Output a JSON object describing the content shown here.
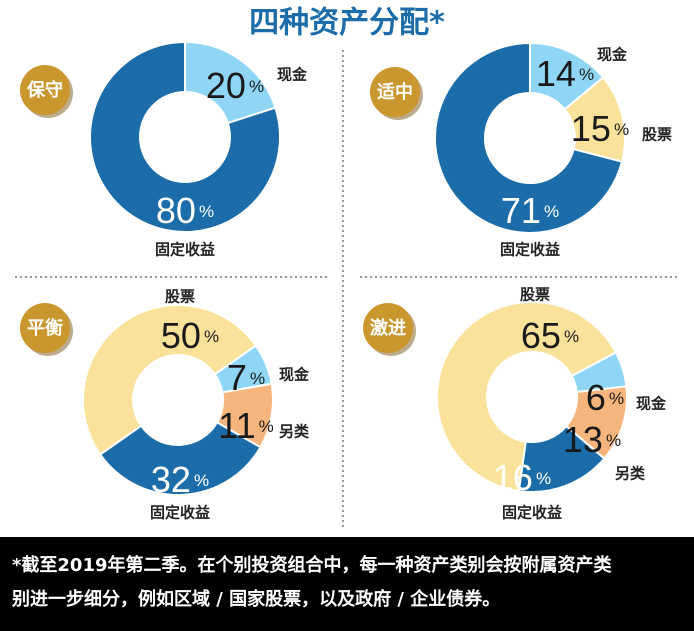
{
  "title": "四种资产分配*",
  "footnote": [
    "*截至2019年第二季。在个别投资组合中，每一种资产类别会按附属资产类",
    "别进一步细分，例如区域 / 国家股票，以及政府 / 企业债券。"
  ],
  "chart_data": [
    {
      "type": "pie",
      "title": "保守",
      "categories": [
        "现金",
        "固定收益"
      ],
      "values": [
        20,
        80
      ],
      "value_labels": [
        "20%",
        "80%"
      ],
      "colors": [
        "#8fd5f5",
        "#1b6ca8"
      ]
    },
    {
      "type": "pie",
      "title": "适中",
      "categories": [
        "现金",
        "股票",
        "固定收益"
      ],
      "values": [
        14,
        15,
        71
      ],
      "value_labels": [
        "14%",
        "15%",
        "71%"
      ],
      "colors": [
        "#8fd5f5",
        "#fbe29a",
        "#1b6ca8"
      ]
    },
    {
      "type": "pie",
      "title": "平衡",
      "categories": [
        "现金",
        "另类",
        "固定收益",
        "股票"
      ],
      "values": [
        7,
        11,
        32,
        50
      ],
      "value_labels": [
        "7%",
        "11%",
        "32%",
        "50%"
      ],
      "colors": [
        "#8fd5f5",
        "#f6b57c",
        "#1b6ca8",
        "#fbe29a"
      ]
    },
    {
      "type": "pie",
      "title": "激进",
      "categories": [
        "现金",
        "另类",
        "固定收益",
        "股票"
      ],
      "values": [
        6,
        13,
        16,
        65
      ],
      "value_labels": [
        "6%",
        "13%",
        "16%",
        "65%"
      ],
      "colors": [
        "#8fd5f5",
        "#f6b57c",
        "#1b6ca8",
        "#fbe29a"
      ]
    }
  ]
}
